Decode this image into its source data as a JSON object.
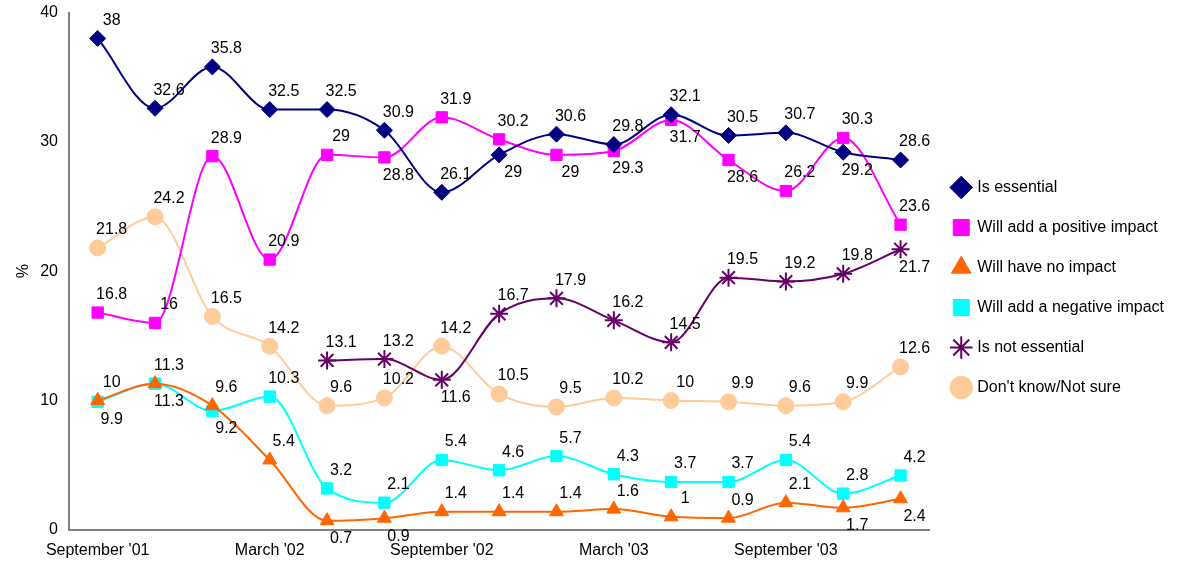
{
  "chart_data": {
    "type": "line",
    "ylabel": "%",
    "categories": [
      "September '01",
      null,
      null,
      "March '02",
      null,
      null,
      "September '02",
      null,
      null,
      "March '03",
      null,
      null,
      "September '03",
      null,
      null
    ],
    "ylim": [
      0,
      40
    ],
    "yticks": [
      0,
      10,
      20,
      30,
      40
    ],
    "grid": false,
    "legend": "right",
    "data_labels": true,
    "series": [
      {
        "name": "Is essential",
        "color": "#000080",
        "marker": "diamond",
        "values": [
          38,
          32.6,
          35.8,
          32.5,
          32.5,
          30.9,
          26.1,
          29,
          30.6,
          29.8,
          32.1,
          30.5,
          30.7,
          29.2,
          28.6
        ]
      },
      {
        "name": "Will add a positive impact",
        "color": "#ff00ff",
        "marker": "square",
        "values": [
          16.8,
          16,
          28.9,
          20.9,
          29,
          28.8,
          31.9,
          30.2,
          29,
          29.3,
          31.7,
          28.6,
          26.2,
          30.3,
          23.6
        ]
      },
      {
        "name": "Will have no impact",
        "color": "#ff6600",
        "marker": "triangle",
        "values": [
          10,
          11.3,
          9.6,
          5.4,
          0.7,
          0.9,
          1.4,
          1.4,
          1.4,
          1.6,
          1,
          0.9,
          2.1,
          1.7,
          2.4
        ]
      },
      {
        "name": "Will add a negative impact",
        "color": "#00ffff",
        "marker": "square",
        "values": [
          9.9,
          11.3,
          9.2,
          10.3,
          3.2,
          2.1,
          5.4,
          4.6,
          5.7,
          4.3,
          3.7,
          3.7,
          5.4,
          2.8,
          4.2
        ]
      },
      {
        "name": "Is not essential",
        "color": "#660066",
        "marker": "cross",
        "values": [
          null,
          null,
          null,
          null,
          13.1,
          13.2,
          11.6,
          16.7,
          17.9,
          16.2,
          14.5,
          19.5,
          19.2,
          19.8,
          21.7
        ]
      },
      {
        "name": "Don't know/Not sure",
        "color": "#ffcc99",
        "marker": "circle",
        "values": [
          21.8,
          24.2,
          16.5,
          14.2,
          9.6,
          10.2,
          14.2,
          10.5,
          9.5,
          10.2,
          10,
          9.9,
          9.6,
          9.9,
          12.6
        ]
      }
    ]
  }
}
